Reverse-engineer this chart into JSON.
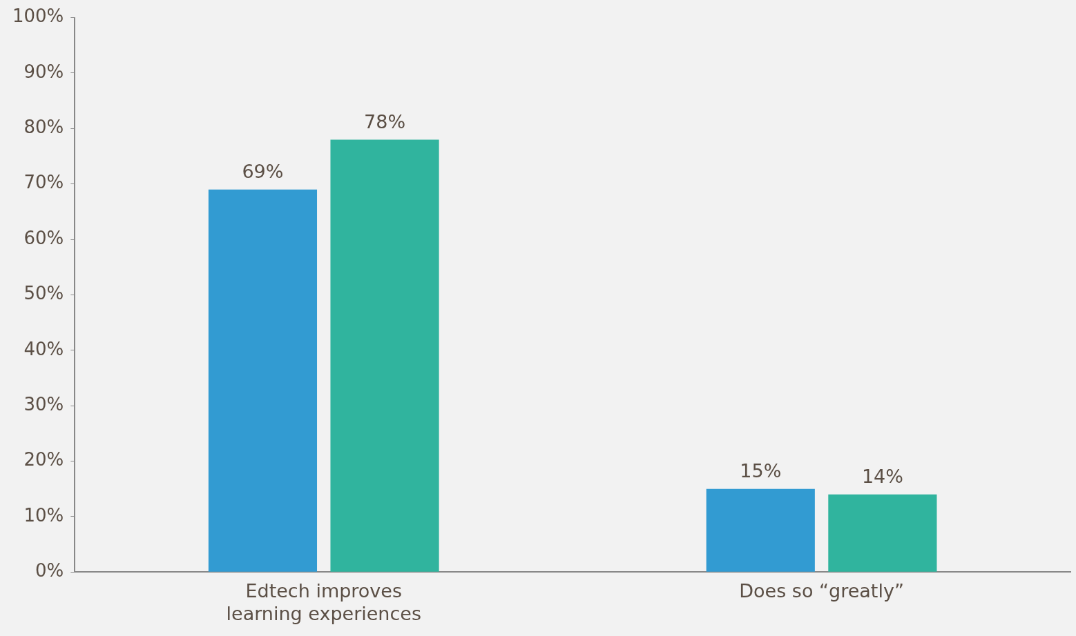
{
  "chart_data": {
    "type": "bar",
    "categories": [
      "Edtech improves learning experiences",
      "Does so “greatly”"
    ],
    "series": [
      {
        "color": "#329bd2",
        "values": [
          69,
          15
        ],
        "value_labels": [
          "69%",
          "15%"
        ]
      },
      {
        "color": "#30b49e",
        "values": [
          78,
          14
        ],
        "value_labels": [
          "78%",
          "14%"
        ]
      }
    ],
    "ylim": [
      0,
      100
    ],
    "yticks": [
      {
        "value": 0,
        "label": "0%"
      },
      {
        "value": 10,
        "label": "10%"
      },
      {
        "value": 20,
        "label": "20%"
      },
      {
        "value": 30,
        "label": "30%"
      },
      {
        "value": 40,
        "label": "40%"
      },
      {
        "value": 50,
        "label": "50%"
      },
      {
        "value": 60,
        "label": "60%"
      },
      {
        "value": 70,
        "label": "70%"
      },
      {
        "value": 80,
        "label": "80%"
      },
      {
        "value": 90,
        "label": "90%"
      },
      {
        "value": 100,
        "label": "100%"
      }
    ],
    "grid": false,
    "legend": false
  }
}
